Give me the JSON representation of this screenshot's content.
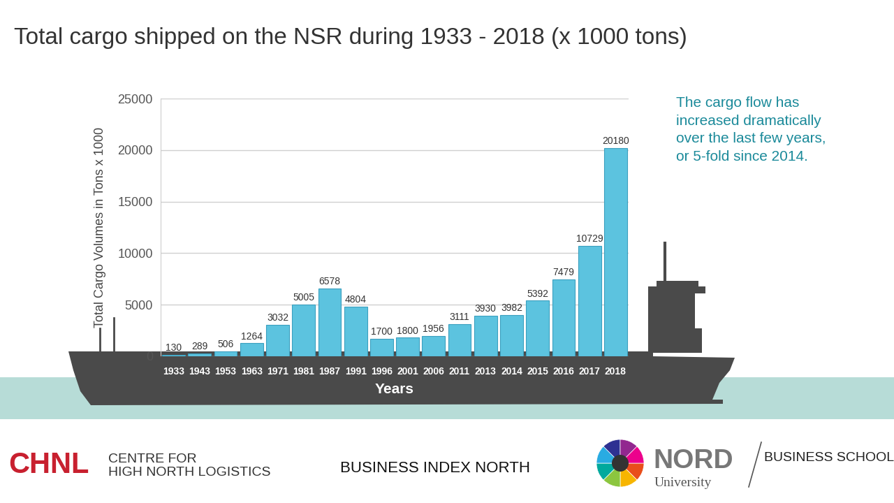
{
  "chart_data": {
    "type": "bar",
    "title": "Total cargo shipped on the NSR during 1933 - 2018 (x 1000 tons)",
    "y_label": "Total Cargo Volumes in Tons x 1000",
    "x_label": "Years",
    "annotation": "The cargo flow has\nincreased dramatically\nover the last few years,\nor 5-fold since 2014.",
    "categories": [
      "1933",
      "1943",
      "1953",
      "1963",
      "1971",
      "1981",
      "1987",
      "1991",
      "1996",
      "2001",
      "2006",
      "2011",
      "2013",
      "2014",
      "2015",
      "2016",
      "2017",
      "2018"
    ],
    "values": [
      130,
      289,
      506,
      1264,
      3032,
      5005,
      6578,
      4804,
      1700,
      1800,
      1956,
      3111,
      3930,
      3982,
      5392,
      7479,
      10729,
      20180
    ],
    "color": "#5cc3df",
    "ylim": [
      0,
      25000
    ],
    "yticks": [
      0,
      5000,
      10000,
      15000,
      20000,
      25000
    ],
    "grid": true,
    "data_labels": true
  },
  "footer": {
    "chnl": "CHNL",
    "chnl_name": "CENTRE FOR\nHIGH NORTH LOGISTICS",
    "center": "BUSINESS INDEX NORTH",
    "nord": "NORD",
    "nord_sub": "University",
    "school": "BUSINESS SCHOOL"
  }
}
